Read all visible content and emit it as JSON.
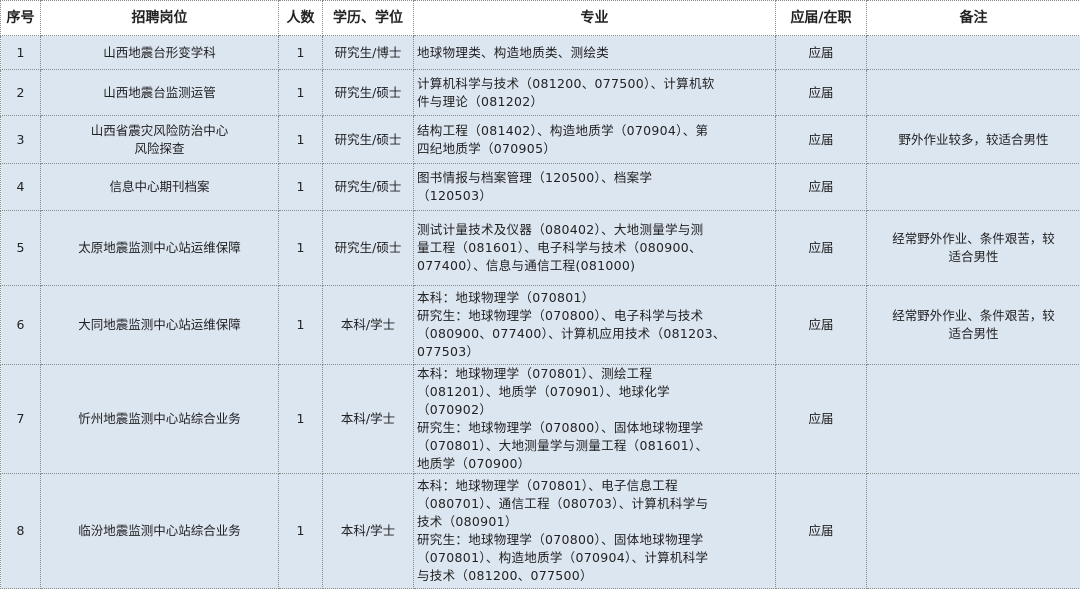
{
  "headers": [
    "序号",
    "招聘岗位",
    "人数",
    "学历、学位",
    "专业",
    "应届/在职",
    "备注"
  ],
  "rows": [
    {
      "no": "1",
      "position": "山西地震台形变学科",
      "count": "1",
      "degree": "研究生/博士",
      "major": "地球物理类、构造地质类、测绘类",
      "status": "应届",
      "note": ""
    },
    {
      "no": "2",
      "position": "山西地震台监测运管",
      "count": "1",
      "degree": "研究生/硕士",
      "major": "计算机科学与技术（081200、077500）、计算机软\n件与理论（081202）",
      "status": "应届",
      "note": ""
    },
    {
      "no": "3",
      "position": "山西省震灾风险防治中心\n风险探查",
      "count": "1",
      "degree": "研究生/硕士",
      "major": "结构工程（081402）、构造地质学（070904）、第\n四纪地质学（070905）",
      "status": "应届",
      "note": "野外作业较多，较适合男性"
    },
    {
      "no": "4",
      "position": "信息中心期刊档案",
      "count": "1",
      "degree": "研究生/硕士",
      "major": "图书情报与档案管理（120500）、档案学\n（120503）",
      "status": "应届",
      "note": ""
    },
    {
      "no": "5",
      "position": "太原地震监测中心站运维保障",
      "count": "1",
      "degree": "研究生/硕士",
      "major": "测试计量技术及仪器（080402）、大地测量学与测\n量工程（081601）、电子科学与技术（080900、\n077400）、信息与通信工程(081000)",
      "status": "应届",
      "note": "经常野外作业、条件艰苦，较\n适合男性"
    },
    {
      "no": "6",
      "position": "大同地震监测中心站运维保障",
      "count": "1",
      "degree": "本科/学士",
      "major": "本科：地球物理学（070801）\n研究生：地球物理学（070800）、电子科学与技术\n（080900、077400）、计算机应用技术（081203、\n077503）",
      "status": "应届",
      "note": "经常野外作业、条件艰苦，较\n适合男性"
    },
    {
      "no": "7",
      "position": "忻州地震监测中心站综合业务",
      "count": "1",
      "degree": "本科/学士",
      "major": "本科：地球物理学（070801）、测绘工程\n（081201）、地质学（070901）、地球化学\n（070902）\n研究生：地球物理学（070800）、固体地球物理学\n（070801）、大地测量学与测量工程（081601）、\n地质学（070900）",
      "status": "应届",
      "note": ""
    },
    {
      "no": "8",
      "position": "临汾地震监测中心站综合业务",
      "count": "1",
      "degree": "本科/学士",
      "major": "本科：地球物理学（070801）、电子信息工程\n（080701）、通信工程（080703）、计算机科学与\n技术（080901）\n研究生：地球物理学（070800）、固体地球物理学\n（070801）、构造地质学（070904）、计算机科学\n与技术（081200、077500）",
      "status": "应届",
      "note": ""
    }
  ],
  "colors": {
    "cell_bg": "#dce6f1",
    "header_bg": "#ffffff",
    "border": "#8a8a8a"
  }
}
